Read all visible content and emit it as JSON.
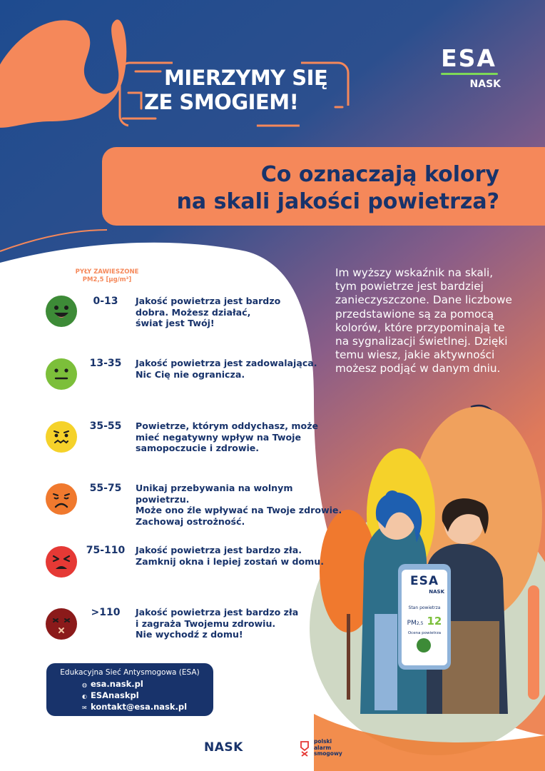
{
  "header": {
    "title_line1": "MIERZYMY SIĘ",
    "title_line2": "ZE SMOGIEM!",
    "logo_esa": "ESA",
    "logo_nask": "NASK"
  },
  "banner": {
    "line1": "Co oznaczają kolory",
    "line2": "na skali jakości powietrza?"
  },
  "intro_text": "Im wyższy wskaźnik na skali, tym powietrze jest bardziej zanieczyszczone. Dane liczbowe przedstawione są za pomocą kolorów, które przypominają te na sygnalizacji świetlnej. Dzięki temu wiesz, jakie aktywności możesz podjąć w danym dniu.",
  "scale": {
    "heading_line1": "PYŁY ZAWIESZONE",
    "heading_line2": "PM2,5 [µg/m³]",
    "levels": [
      {
        "range": "0-13",
        "description": "Jakość powietrza jest bardzo\ndobra. Możesz działać,\nświat jest Twój!",
        "color": "#3d8b37",
        "icon": "very-happy-face-icon"
      },
      {
        "range": "13-35",
        "description": "Jakość powietrza jest zadowalająca.\nNic Cię nie ogranicza.",
        "color": "#7cbf3a",
        "icon": "neutral-face-icon"
      },
      {
        "range": "35-55",
        "description": "Powietrze, którym oddychasz, może\nmieć negatywny wpływ na Twoje\nsamopoczucie i zdrowie.",
        "color": "#f5d22a",
        "icon": "uneasy-face-icon"
      },
      {
        "range": "55-75",
        "description": "Unikaj przebywania na wolnym powietrzu.\nMoże ono źle wpływać na Twoje zdrowie.\nZachowaj ostrożność.",
        "color": "#f0792e",
        "icon": "worried-face-icon"
      },
      {
        "range": "75-110",
        "description": "Jakość powietrza jest bardzo zła.\nZamknij okna i lepiej zostań w domu.",
        "color": "#e53935",
        "icon": "distressed-face-icon"
      },
      {
        "range": ">110",
        "description": "Jakość powietrza jest bardzo zła\ni zagraża Twojemu zdrowiu.\nNie wychodź z domu!",
        "color": "#8b1a1a",
        "icon": "dizzy-face-icon"
      }
    ]
  },
  "contact": {
    "title": "Edukacyjna Sieć Antysmogowa (ESA)",
    "website": "esa.nask.pl",
    "social": "ESAnaskpl",
    "email": "kontakt@esa.nask.pl"
  },
  "phone": {
    "logo": "ESA",
    "logo_sub": "NASK",
    "status_label": "Stan powietrza",
    "pm_label": "PM",
    "pm_sub": "2,5",
    "pm_value": "12",
    "rating_label": "Ocena powietrza"
  },
  "footer": {
    "nask": "NASK",
    "pas_line1": "polski",
    "pas_line2": "alarm",
    "pas_line3": "smogowy"
  },
  "colors": {
    "navy": "#18336b",
    "orange": "#f5885a",
    "green": "#7ed957"
  }
}
